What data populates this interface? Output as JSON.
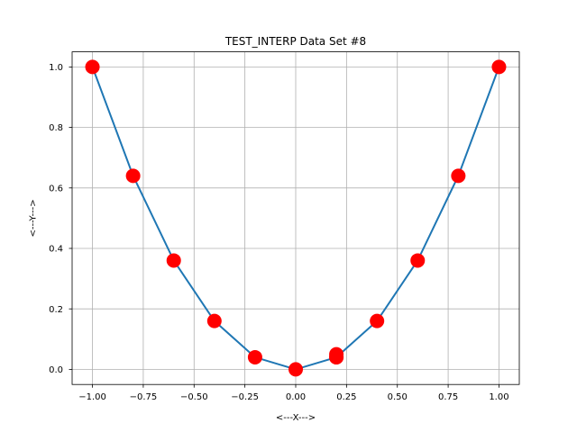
{
  "chart_data": {
    "type": "line",
    "title": "TEST_INTERP Data Set #8",
    "xlabel": "<---X--->",
    "ylabel": "<---Y--->",
    "xlim": [
      -1.1,
      1.1
    ],
    "ylim": [
      -0.05,
      1.05
    ],
    "x_ticks": [
      -1.0,
      -0.75,
      -0.5,
      -0.25,
      0.0,
      0.25,
      0.5,
      0.75,
      1.0
    ],
    "x_tick_labels": [
      "−1.00",
      "−0.75",
      "−0.50",
      "−0.25",
      "0.00",
      "0.25",
      "0.50",
      "0.75",
      "1.00"
    ],
    "y_ticks": [
      0.0,
      0.2,
      0.4,
      0.6,
      0.8,
      1.0
    ],
    "y_tick_labels": [
      "0.0",
      "0.2",
      "0.4",
      "0.6",
      "0.8",
      "1.0"
    ],
    "grid": true,
    "series": [
      {
        "line_color": "#1f77b4",
        "marker_color": "#ff0000",
        "points": [
          {
            "x": -1.0,
            "y": 1.0
          },
          {
            "x": -0.8,
            "y": 0.64
          },
          {
            "x": -0.6,
            "y": 0.36
          },
          {
            "x": -0.4,
            "y": 0.16
          },
          {
            "x": -0.2,
            "y": 0.04
          },
          {
            "x": 0.0,
            "y": 0.0
          },
          {
            "x": 0.2,
            "y": 0.04
          },
          {
            "x": 0.2,
            "y": 0.05
          },
          {
            "x": 0.2,
            "y": 0.04
          },
          {
            "x": 0.4,
            "y": 0.16
          },
          {
            "x": 0.6,
            "y": 0.36
          },
          {
            "x": 0.8,
            "y": 0.64
          },
          {
            "x": 1.0,
            "y": 1.0
          }
        ]
      }
    ]
  }
}
